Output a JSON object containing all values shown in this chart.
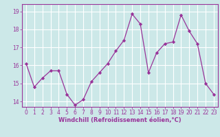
{
  "x": [
    0,
    1,
    2,
    3,
    4,
    5,
    6,
    7,
    8,
    9,
    10,
    11,
    12,
    13,
    14,
    15,
    16,
    17,
    18,
    19,
    20,
    21,
    22,
    23
  ],
  "y": [
    16.1,
    14.8,
    15.3,
    15.7,
    15.7,
    14.4,
    13.8,
    14.1,
    15.1,
    15.6,
    16.1,
    16.8,
    17.4,
    18.85,
    18.3,
    15.6,
    16.7,
    17.2,
    17.3,
    18.8,
    17.9,
    17.2,
    15.0,
    14.4
  ],
  "line_color": "#993399",
  "marker": "D",
  "marker_size": 2.2,
  "bg_color": "#cce8e8",
  "grid_color": "#ffffff",
  "xlabel": "Windchill (Refroidissement éolien,°C)",
  "ylim": [
    13.7,
    19.4
  ],
  "xlim": [
    -0.5,
    23.5
  ],
  "yticks": [
    14,
    15,
    16,
    17,
    18,
    19
  ],
  "xticks": [
    0,
    1,
    2,
    3,
    4,
    5,
    6,
    7,
    8,
    9,
    10,
    11,
    12,
    13,
    14,
    15,
    16,
    17,
    18,
    19,
    20,
    21,
    22,
    23
  ],
  "tick_fontsize": 5.5,
  "xlabel_fontsize": 6.0,
  "line_width": 0.9
}
